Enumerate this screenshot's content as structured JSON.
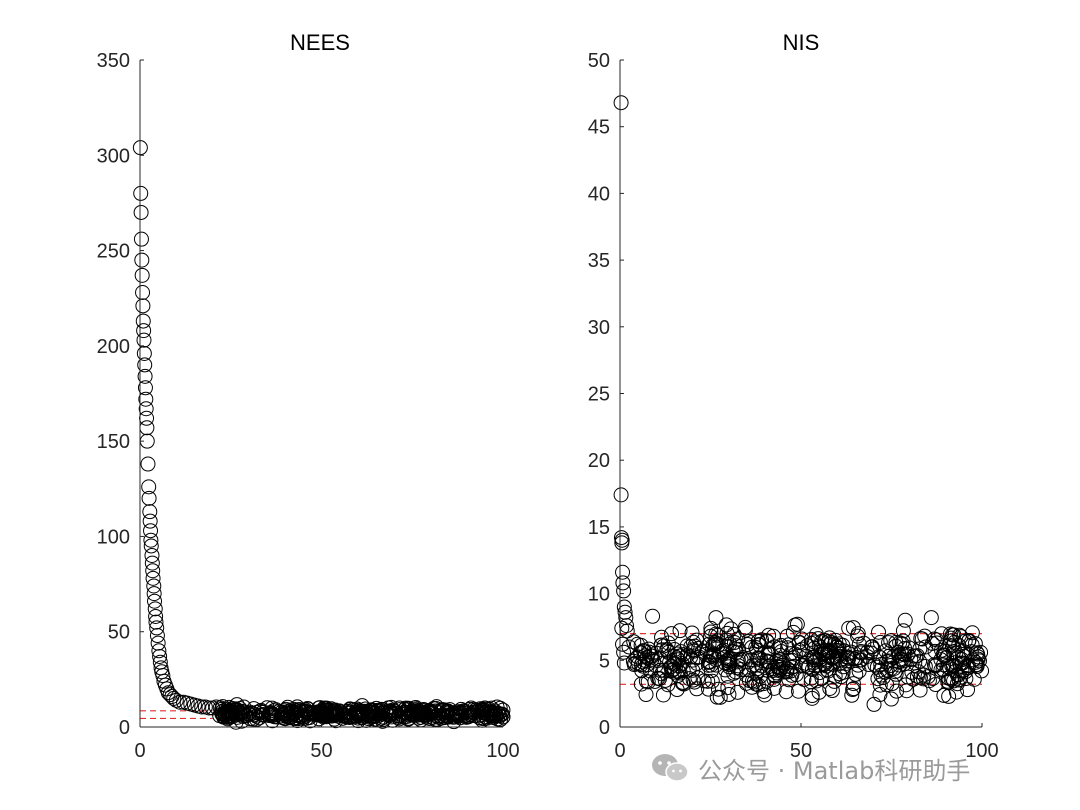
{
  "colors": {
    "marker": "#000000",
    "bound": "#e03030",
    "axis": "#262626"
  },
  "watermark": {
    "text": "公众号 · Matlab科研助手",
    "icon": "wechat-icon"
  },
  "chart_data": [
    {
      "type": "scatter",
      "title": "NEES",
      "xlim": [
        0,
        100
      ],
      "ylim": [
        0,
        350
      ],
      "xticks": [
        0,
        50,
        100
      ],
      "yticks": [
        0,
        50,
        100,
        150,
        200,
        250,
        300,
        350
      ],
      "xtick_labels": [
        "0",
        "50",
        "100"
      ],
      "ytick_labels": [
        "0",
        "50",
        "100",
        "150",
        "200",
        "250",
        "300",
        "350"
      ],
      "grid": false,
      "bounds": [
        8.5,
        4.5
      ],
      "bounds_x": [
        0,
        20
      ],
      "markers_first": [
        [
          0.1,
          304
        ],
        [
          0.2,
          280
        ],
        [
          0.3,
          270
        ],
        [
          0.4,
          256
        ],
        [
          0.5,
          245
        ],
        [
          0.6,
          237
        ],
        [
          0.7,
          228
        ],
        [
          0.8,
          221
        ],
        [
          0.9,
          213
        ],
        [
          1.0,
          208
        ],
        [
          1.1,
          203
        ],
        [
          1.2,
          196
        ],
        [
          1.3,
          190
        ],
        [
          1.4,
          184
        ],
        [
          1.5,
          178
        ],
        [
          1.6,
          172
        ],
        [
          1.7,
          167
        ],
        [
          1.8,
          162
        ],
        [
          1.9,
          157
        ],
        [
          2.0,
          150
        ],
        [
          2.2,
          138
        ],
        [
          2.4,
          126
        ],
        [
          2.5,
          120
        ],
        [
          2.7,
          113
        ],
        [
          2.8,
          108
        ],
        [
          2.9,
          103
        ],
        [
          3.0,
          98
        ],
        [
          3.1,
          95
        ],
        [
          3.3,
          90
        ],
        [
          3.4,
          86
        ],
        [
          3.5,
          82
        ],
        [
          3.6,
          78
        ],
        [
          3.8,
          74
        ],
        [
          3.9,
          70
        ],
        [
          4.0,
          66
        ],
        [
          4.2,
          62
        ],
        [
          4.3,
          58
        ],
        [
          4.4,
          55
        ],
        [
          4.6,
          52
        ],
        [
          4.8,
          48
        ],
        [
          5.0,
          44
        ],
        [
          5.2,
          40
        ],
        [
          5.4,
          37
        ],
        [
          5.6,
          34
        ],
        [
          5.8,
          31
        ],
        [
          6.0,
          29
        ],
        [
          6.3,
          27
        ],
        [
          6.6,
          24
        ],
        [
          7.0,
          22
        ],
        [
          7.4,
          20
        ],
        [
          7.8,
          18
        ],
        [
          8.3,
          17
        ],
        [
          8.8,
          16
        ],
        [
          9.3,
          15
        ],
        [
          10,
          14
        ],
        [
          11,
          13
        ],
        [
          12,
          13
        ],
        [
          13,
          12.5
        ],
        [
          14,
          12
        ],
        [
          15,
          11.5
        ],
        [
          16,
          11
        ],
        [
          17,
          10.5
        ],
        [
          18,
          10.5
        ],
        [
          19,
          10
        ],
        [
          20,
          10
        ],
        [
          21,
          10.5
        ]
      ],
      "tail": {
        "x_from": 21,
        "x_to": 100,
        "y_center": 7,
        "y_spread": 5,
        "count": 520,
        "seed": 11
      }
    },
    {
      "type": "scatter",
      "title": "NIS",
      "xlim": [
        0,
        100
      ],
      "ylim": [
        0,
        50
      ],
      "xticks": [
        0,
        50,
        100
      ],
      "yticks": [
        0,
        5,
        10,
        15,
        20,
        25,
        30,
        35,
        40,
        45,
        50
      ],
      "xtick_labels": [
        "0",
        "50",
        "100"
      ],
      "ytick_labels": [
        "0",
        "5",
        "10",
        "15",
        "20",
        "25",
        "30",
        "35",
        "40",
        "45",
        "50"
      ],
      "grid": false,
      "bounds": [
        7.0,
        3.2
      ],
      "bounds_x": [
        0,
        100
      ],
      "markers_first": [
        [
          0.3,
          46.8
        ],
        [
          0.3,
          17.4
        ],
        [
          0.4,
          14.2
        ],
        [
          0.5,
          13.8
        ],
        [
          0.6,
          14.0
        ],
        [
          0.7,
          11.6
        ],
        [
          0.8,
          10.8
        ],
        [
          1.0,
          10.2
        ],
        [
          1.2,
          9.0
        ],
        [
          1.4,
          8.6
        ],
        [
          1.6,
          8.2
        ],
        [
          1.8,
          7.6
        ],
        [
          0.5,
          7.4
        ],
        [
          0.7,
          6.2
        ],
        [
          1.0,
          5.6
        ],
        [
          2.0,
          7.2
        ],
        [
          2.5,
          6.0
        ],
        [
          1.2,
          4.8
        ],
        [
          9.0,
          8.3
        ],
        [
          26.5,
          8.2
        ],
        [
          49.0,
          7.7
        ],
        [
          78.8,
          8.0
        ],
        [
          86.0,
          8.2
        ],
        [
          40.0,
          2.4
        ],
        [
          32.5,
          2.6
        ],
        [
          55.0,
          2.6
        ],
        [
          12.0,
          2.4
        ],
        [
          96.0,
          2.8
        ]
      ],
      "tail": {
        "x_from": 3,
        "x_to": 100,
        "y_center": 5,
        "y_spread": 3.4,
        "count": 560,
        "seed": 29
      }
    }
  ]
}
